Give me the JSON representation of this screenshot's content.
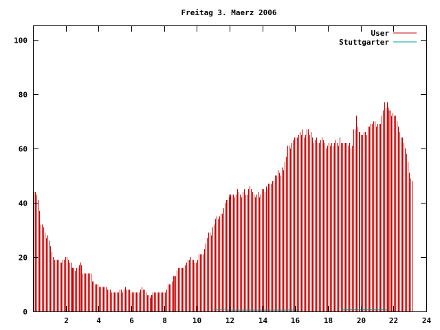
{
  "chart_data": {
    "type": "bar",
    "title": "Freitag 3. Maerz 2006",
    "xlabel": "",
    "ylabel": "",
    "xlim": [
      0,
      24
    ],
    "ylim": [
      0,
      105
    ],
    "x_ticks": [
      2,
      4,
      6,
      8,
      10,
      12,
      14,
      16,
      18,
      20,
      22,
      24
    ],
    "y_ticks": [
      0,
      20,
      40,
      60,
      80,
      100
    ],
    "grid": false,
    "legend_position": "top-right",
    "series": [
      {
        "name": "User",
        "color": "#cc0000",
        "step_hours": 0.0833,
        "values": [
          44,
          44,
          43,
          41,
          37,
          32,
          32,
          31,
          29,
          27,
          28,
          26,
          24,
          22,
          20,
          19,
          19,
          19,
          19,
          18,
          18,
          19,
          19,
          20,
          20,
          19,
          18,
          18,
          16,
          16,
          15,
          16,
          16,
          17,
          18,
          17,
          14,
          14,
          14,
          14,
          14,
          14,
          14,
          11,
          11,
          10,
          10,
          10,
          9,
          9,
          9,
          9,
          9,
          9,
          8,
          8,
          8,
          7,
          7,
          7,
          7,
          7,
          7,
          8,
          8,
          7,
          8,
          9,
          8,
          8,
          8,
          7,
          7,
          7,
          7,
          7,
          7,
          7,
          8,
          9,
          8,
          8,
          7,
          6,
          6,
          5,
          6,
          7,
          7,
          7,
          7,
          7,
          7,
          7,
          7,
          7,
          7,
          8,
          10,
          10,
          10,
          11,
          13,
          13,
          13,
          15,
          16,
          16,
          16,
          16,
          16,
          17,
          18,
          19,
          19,
          20,
          19,
          19,
          18,
          18,
          19,
          21,
          21,
          21,
          21,
          23,
          25,
          27,
          29,
          29,
          28,
          31,
          32,
          34,
          35,
          34,
          35,
          36,
          36,
          38,
          40,
          41,
          41,
          42,
          43,
          43,
          43,
          42,
          43,
          45,
          44,
          43,
          42,
          44,
          45,
          43,
          43,
          45,
          46,
          45,
          44,
          43,
          42,
          43,
          44,
          42,
          43,
          45,
          45,
          44,
          46,
          45,
          47,
          47,
          47,
          48,
          48,
          50,
          50,
          52,
          51,
          50,
          53,
          52,
          55,
          57,
          61,
          61,
          60,
          62,
          63,
          64,
          64,
          64,
          65,
          66,
          65,
          67,
          64,
          65,
          67,
          67,
          65,
          66,
          64,
          62,
          63,
          64,
          62,
          62,
          63,
          64,
          63,
          62,
          60,
          61,
          62,
          61,
          62,
          61,
          62,
          63,
          62,
          61,
          64,
          62,
          62,
          62,
          62,
          62,
          61,
          62,
          60,
          61,
          67,
          67,
          72,
          68,
          66,
          66,
          65,
          65,
          66,
          66,
          65,
          68,
          68,
          69,
          69,
          70,
          70,
          68,
          69,
          69,
          69,
          72,
          74,
          77,
          75,
          77,
          75,
          74,
          72,
          73,
          72,
          72,
          70,
          68,
          66,
          64,
          64,
          62,
          60,
          58,
          55,
          51,
          49,
          48
        ]
      },
      {
        "name": "Stuttgarter",
        "color": "#009999",
        "segments": [
          [
            11.0,
            11.8,
            0.8
          ],
          [
            11.8,
            16.2,
            0.5
          ],
          [
            18.8,
            21.6,
            0.6
          ]
        ]
      }
    ],
    "highlight_hours": [
      2.4,
      7.2,
      12.0,
      21.7
    ]
  }
}
